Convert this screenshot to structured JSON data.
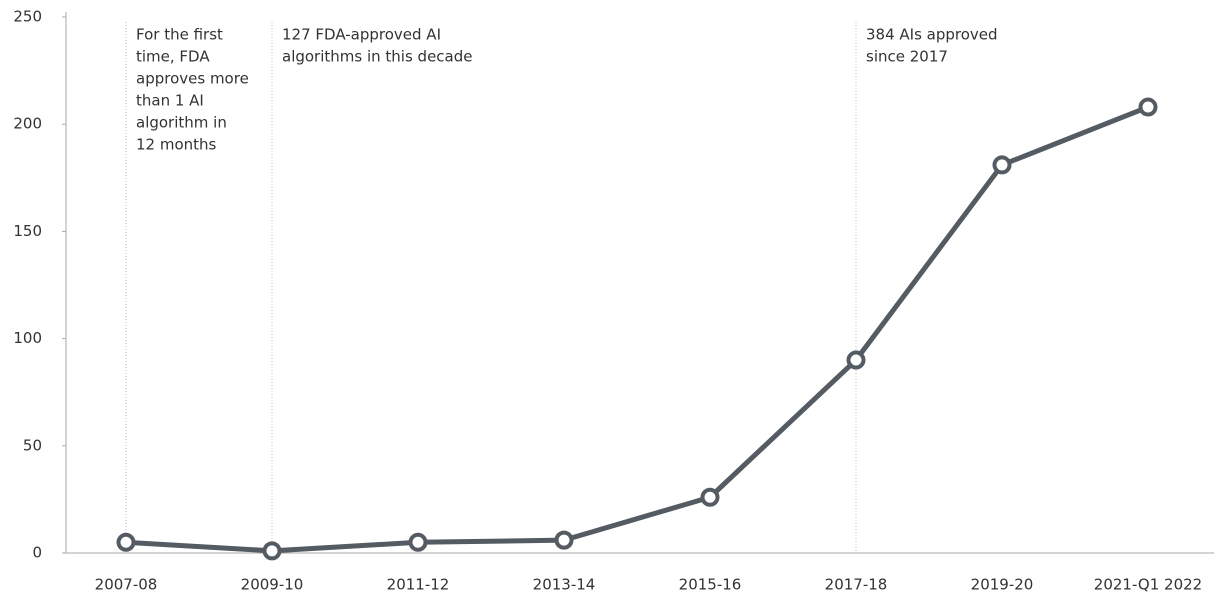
{
  "chart_data": {
    "type": "line",
    "categories": [
      "2007-08",
      "2009-10",
      "2011-12",
      "2013-14",
      "2015-16",
      "2017-18",
      "2019-20",
      "2021-Q1 2022"
    ],
    "series": [
      {
        "color": "#545b63",
        "values": [
          5,
          1,
          5,
          6,
          26,
          90,
          181,
          208
        ]
      }
    ],
    "ylim": [
      0,
      250
    ],
    "yticks": [
      0,
      50,
      100,
      150,
      200,
      250
    ],
    "annotations": [
      {
        "lines": [
          "For the first",
          "time, FDA",
          "approves more",
          "than 1 AI",
          "algorithm in",
          "12 months"
        ]
      },
      {
        "lines": [
          "127 FDA-approved AI",
          "algorithms in this decade"
        ]
      },
      {
        "lines": [
          "384 AIs approved",
          "since 2017"
        ]
      }
    ]
  }
}
